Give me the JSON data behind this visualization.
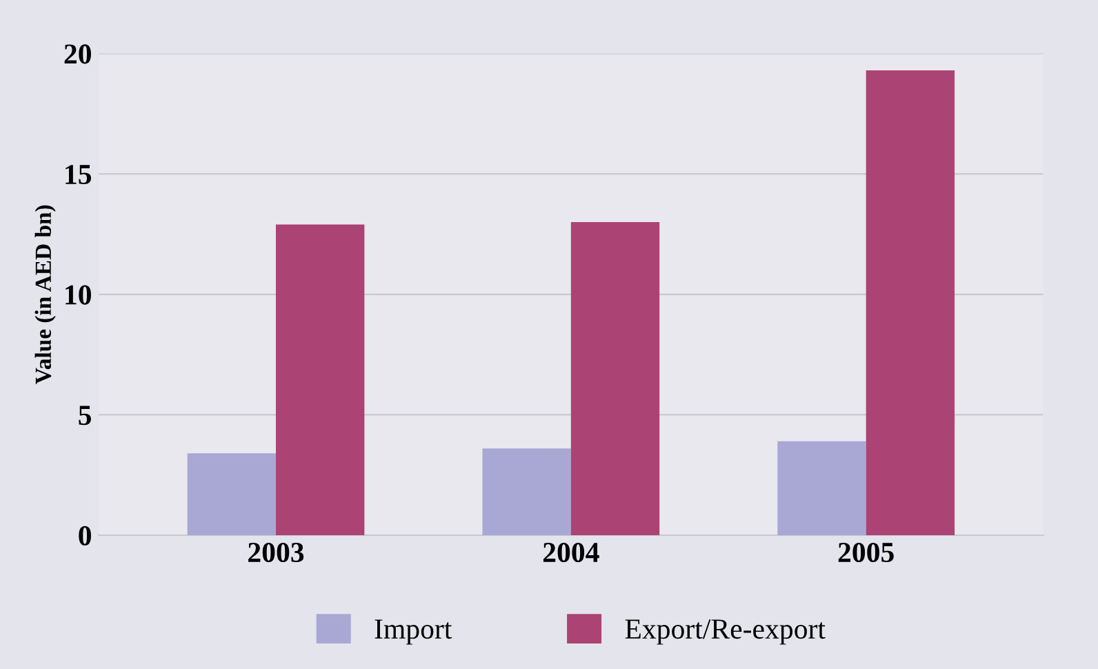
{
  "chart_data": {
    "type": "bar",
    "ylabel": "Value (in AED bn)",
    "categories": [
      "2003",
      "2004",
      "2005"
    ],
    "series": [
      {
        "name": "Import",
        "color": "#a9a8d4",
        "values": [
          3.4,
          3.6,
          3.9
        ]
      },
      {
        "name": "Export/Re-export",
        "color": "#ab4474",
        "values": [
          12.9,
          13.0,
          19.3
        ]
      }
    ],
    "ylim": [
      0,
      20
    ],
    "yticks": [
      0,
      5,
      10,
      15,
      20
    ],
    "grid": "y",
    "legend": "bottom"
  }
}
